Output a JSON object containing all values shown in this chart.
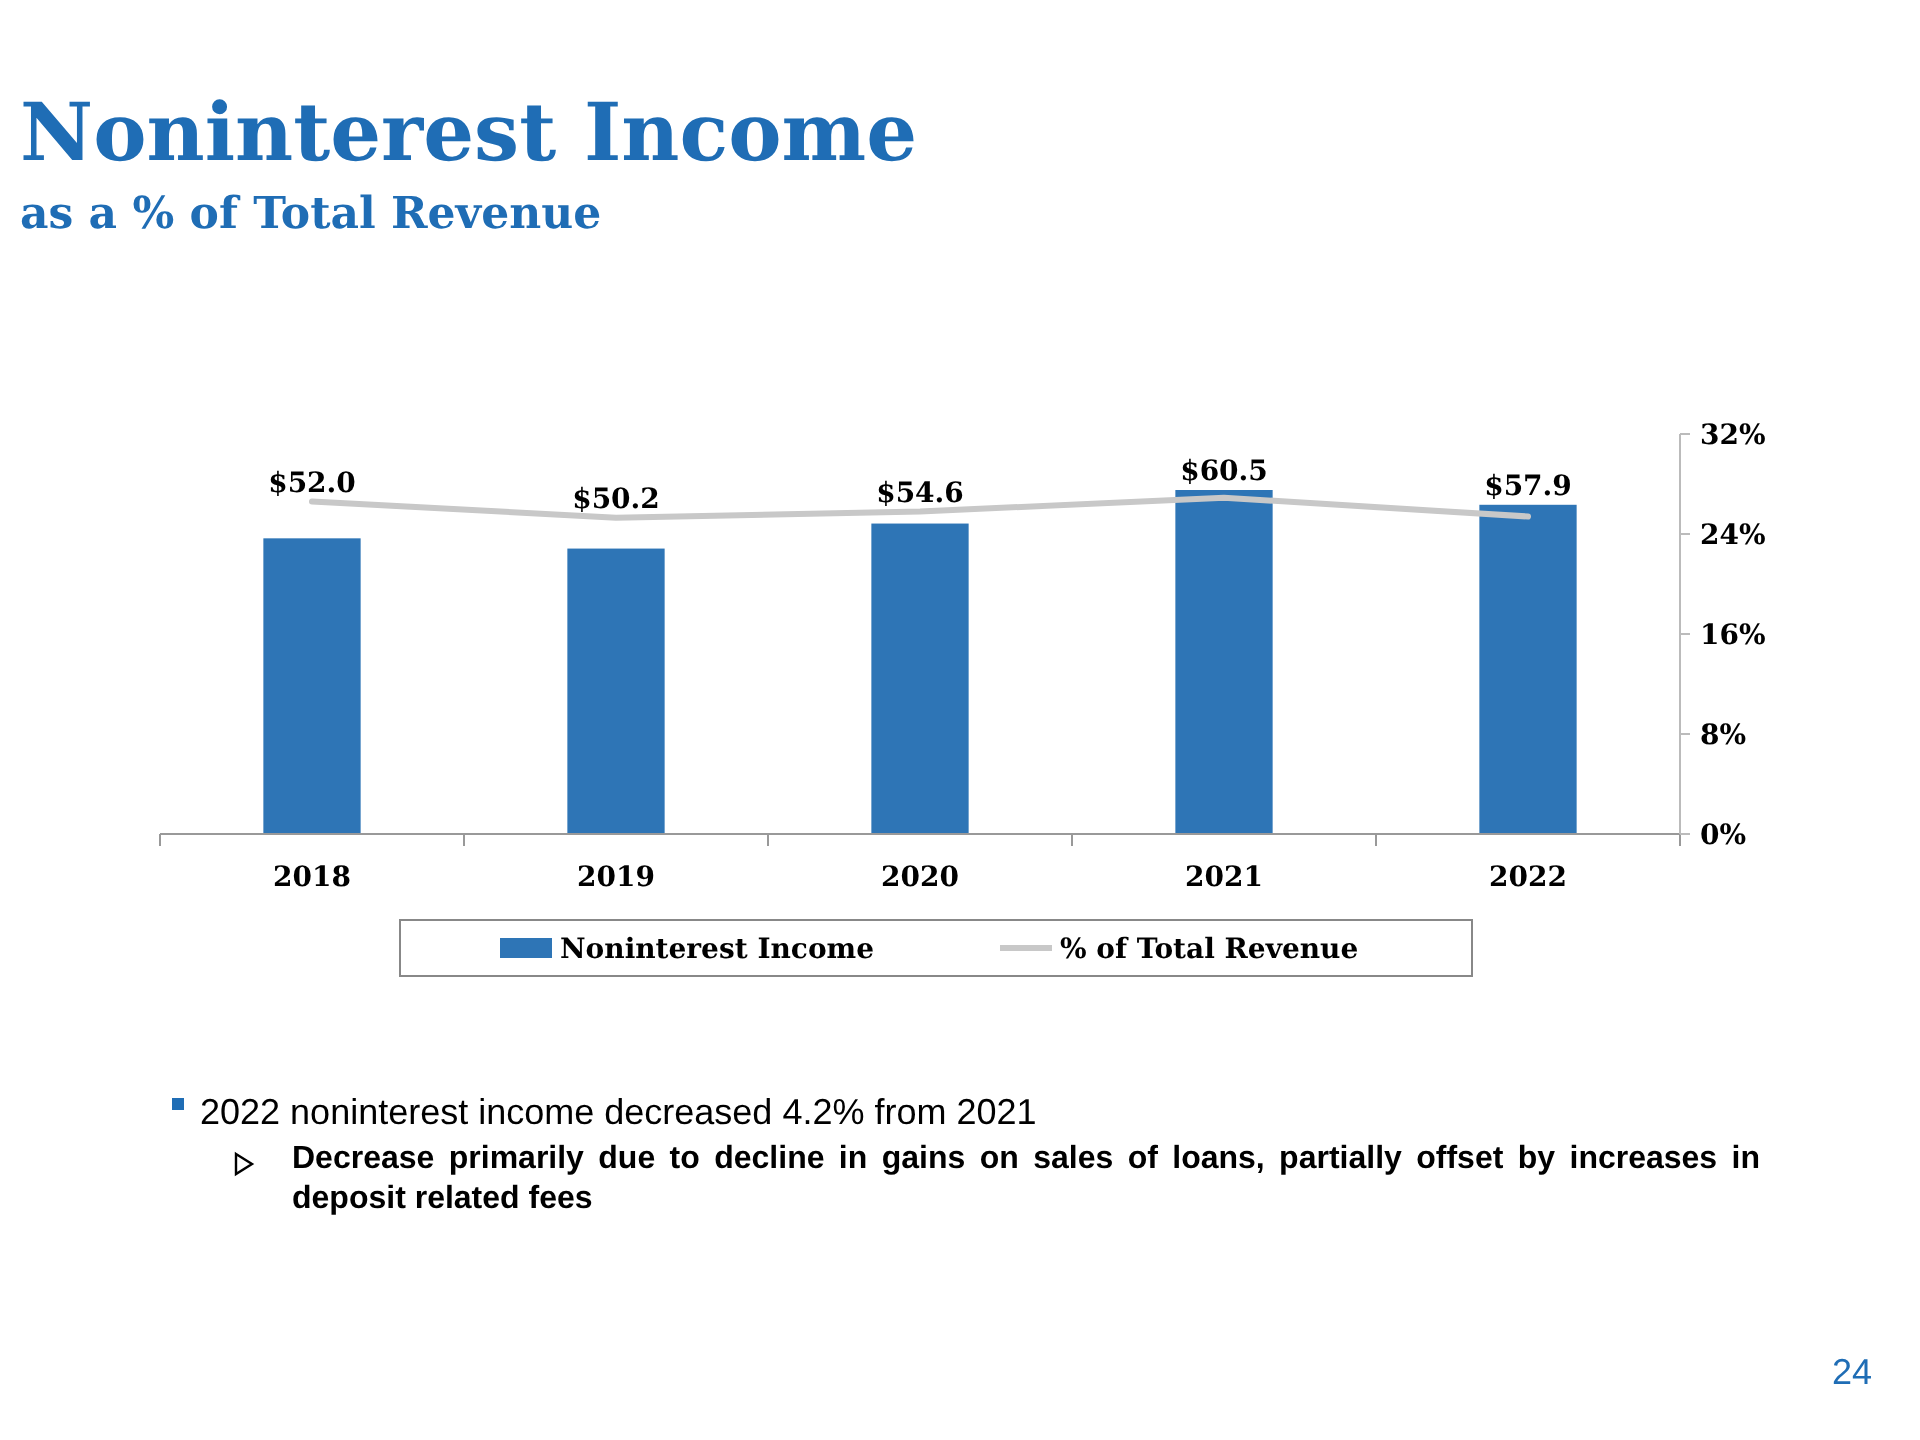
{
  "chart_data": {
    "type": "bar",
    "title": "Noninterest Income",
    "subtitle": "as a % of Total Revenue",
    "categories": [
      "2018",
      "2019",
      "2020",
      "2021",
      "2022"
    ],
    "series": [
      {
        "name": "Noninterest Income",
        "color": "#2e75b6",
        "values": [
          52.0,
          50.2,
          54.6,
          60.5,
          57.9
        ],
        "value_labels": [
          "$52.0",
          "$50.2",
          "$54.6",
          "$60.5",
          "$57.9"
        ]
      },
      {
        "name": "% of Total Revenue",
        "type": "line",
        "axis": "y2",
        "color": "#c8c8c8",
        "values": [
          26.6,
          25.3,
          25.8,
          26.9,
          25.4
        ]
      }
    ],
    "y2lim": [
      0,
      32
    ],
    "y2ticks": [
      {
        "value": 0,
        "label": "0%"
      },
      {
        "value": 8,
        "label": "8%"
      },
      {
        "value": 16,
        "label": "16%"
      },
      {
        "value": 24,
        "label": "24%"
      },
      {
        "value": 32,
        "label": "32%"
      }
    ],
    "legend": "bottom",
    "grid": false,
    "marker": "none",
    "line_style": "solid",
    "annotations": [
      "2022 noninterest income decreased 4.2% from 2021",
      "Decrease primarily due to decline in gains on sales of loans, partially offset by increases in deposit related fees",
      "24"
    ]
  }
}
